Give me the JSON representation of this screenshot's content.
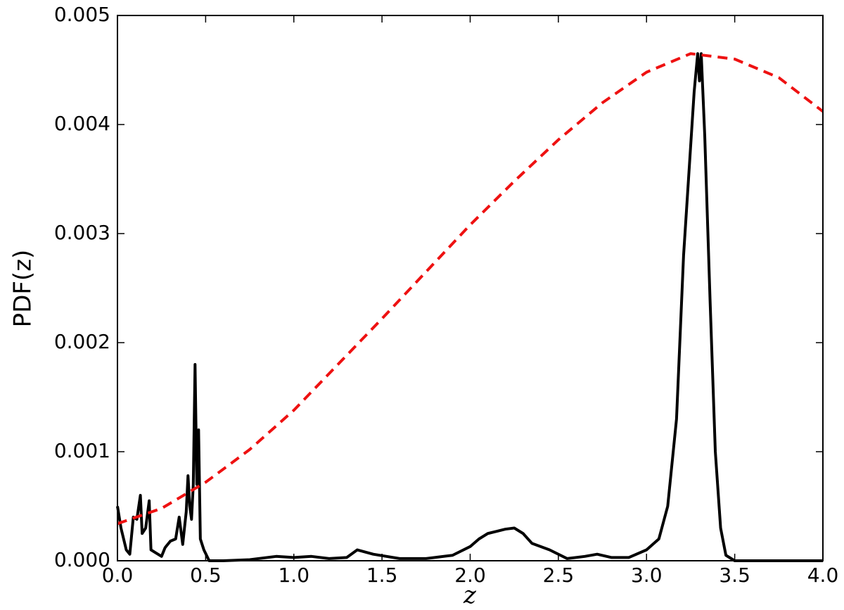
{
  "chart_data": {
    "type": "line",
    "xlabel": "z",
    "ylabel": "PDF(z)",
    "xlim": [
      0,
      4
    ],
    "ylim": [
      0,
      0.005
    ],
    "xticks": [
      {
        "value": 0,
        "label": "0.0"
      },
      0.5,
      {
        "value": 1,
        "label": "1.0"
      },
      1.5,
      {
        "value": 2,
        "label": "2.0"
      },
      2.5,
      {
        "value": 3,
        "label": "3.0"
      },
      3.5,
      {
        "value": 4,
        "label": "4.0"
      }
    ],
    "yticks": [
      {
        "value": 0,
        "label": "0.000"
      },
      0.001,
      0.002,
      0.003,
      0.004,
      0.005
    ],
    "series": [
      {
        "color": "#000000",
        "dashed": false,
        "x": [
          0.0,
          0.02,
          0.05,
          0.07,
          0.09,
          0.11,
          0.13,
          0.14,
          0.16,
          0.18,
          0.19,
          0.22,
          0.25,
          0.27,
          0.3,
          0.33,
          0.35,
          0.37,
          0.39,
          0.4,
          0.41,
          0.42,
          0.43,
          0.44,
          0.45,
          0.46,
          0.47,
          0.49,
          0.52,
          0.6,
          0.75,
          0.9,
          1.0,
          1.1,
          1.2,
          1.3,
          1.36,
          1.45,
          1.6,
          1.75,
          1.9,
          2.0,
          2.05,
          2.1,
          2.15,
          2.2,
          2.25,
          2.3,
          2.35,
          2.45,
          2.55,
          2.65,
          2.72,
          2.8,
          2.9,
          3.0,
          3.07,
          3.12,
          3.17,
          3.21,
          3.25,
          3.27,
          3.29,
          3.3,
          3.31,
          3.33,
          3.36,
          3.39,
          3.42,
          3.45,
          3.5,
          4.0
        ],
        "values": [
          0.0005,
          0.0003,
          0.0001,
          6e-05,
          0.0004,
          0.00038,
          0.0006,
          0.00025,
          0.0003,
          0.00055,
          0.0001,
          7e-05,
          4e-05,
          0.00012,
          0.00018,
          0.0002,
          0.0004,
          0.00015,
          0.00045,
          0.00078,
          0.0005,
          0.00038,
          0.0007,
          0.0018,
          0.0007,
          0.0012,
          0.0002,
          0.0001,
          0.0,
          0.0,
          1e-05,
          4e-05,
          3e-05,
          4e-05,
          2e-05,
          3e-05,
          0.0001,
          6e-05,
          2e-05,
          2e-05,
          5e-05,
          0.00013,
          0.0002,
          0.00025,
          0.00027,
          0.00029,
          0.0003,
          0.00025,
          0.00016,
          0.0001,
          2e-05,
          4e-05,
          6e-05,
          3e-05,
          3e-05,
          0.0001,
          0.0002,
          0.0005,
          0.0013,
          0.0028,
          0.0038,
          0.0043,
          0.00465,
          0.0044,
          0.00465,
          0.0039,
          0.0024,
          0.001,
          0.0003,
          5e-05,
          0.0,
          0.0
        ]
      },
      {
        "color": "#ee1111",
        "dashed": true,
        "x": [
          0,
          0.25,
          0.5,
          0.75,
          1.0,
          1.25,
          1.5,
          1.75,
          2.0,
          2.25,
          2.5,
          2.75,
          3.0,
          3.25,
          3.5,
          3.75,
          4.0
        ],
        "values": [
          0.00034,
          0.00048,
          0.00072,
          0.00102,
          0.00138,
          0.0018,
          0.00222,
          0.00265,
          0.00308,
          0.00348,
          0.00386,
          0.0042,
          0.00448,
          0.00465,
          0.0046,
          0.00443,
          0.00412
        ]
      }
    ]
  }
}
